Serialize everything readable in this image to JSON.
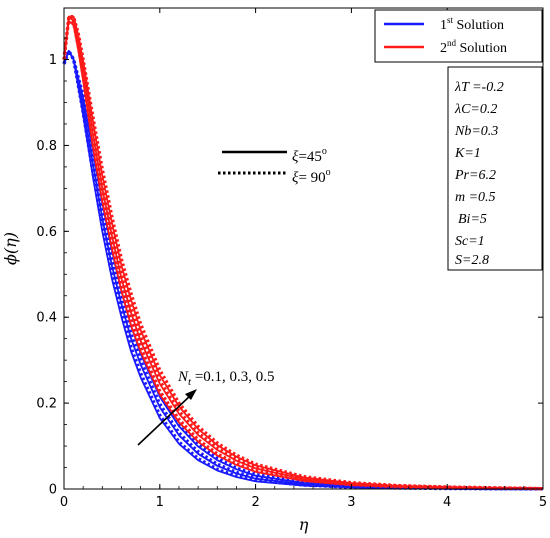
{
  "chart_data": {
    "type": "line",
    "xlabel": "η",
    "ylabel": "ϕ(η)",
    "xlim": [
      0,
      5
    ],
    "ylim": [
      0,
      1.12
    ],
    "xticks": [
      0,
      1,
      2,
      3,
      4,
      5
    ],
    "yticks": [
      0,
      0.2,
      0.4,
      0.6,
      0.8,
      1
    ],
    "xtick_labels": [
      "0",
      "1",
      "2",
      "3",
      "4",
      "5"
    ],
    "ytick_labels": [
      "0",
      "0.2",
      "0.4",
      "0.6",
      "0.8",
      "1"
    ],
    "grid": false,
    "legend": {
      "placement": "top-right",
      "entries": [
        {
          "label_main": "1",
          "label_sup": "st",
          "label_rest": " Solution",
          "color": "#1a1aff"
        },
        {
          "label_main": "2",
          "label_sup": "nd",
          "label_rest": " Solution",
          "color": "#ff1a1a"
        }
      ]
    },
    "line_style_legend": [
      {
        "style": "solid",
        "label_main": "ξ",
        "label_rest": "=45",
        "label_sup": "o"
      },
      {
        "style": "dotted",
        "label_main": "ξ",
        "label_rest": "= 90",
        "label_sup": "o"
      }
    ],
    "parameters": [
      "λT =-0.2",
      "λC=0.2",
      "Nb=0.3",
      "K=1",
      "Pr=6.2",
      "m =0.5",
      "Bi=5",
      "Sc=1",
      "S=2.8"
    ],
    "annotation": {
      "text_main": "N",
      "text_sub": "t",
      "text_rest": " =0.1, 0.3, 0.5"
    },
    "series": [
      {
        "solution": 1,
        "xi": 45,
        "Nt": 0.1,
        "color": "#1a1aff",
        "dash": "solid",
        "x": [
          0,
          0.05,
          0.1,
          0.2,
          0.3,
          0.4,
          0.5,
          0.6,
          0.7,
          0.8,
          1.0,
          1.2,
          1.4,
          1.6,
          1.8,
          2.0,
          2.5,
          3.0,
          3.5,
          4.0,
          4.5,
          5.0
        ],
        "y": [
          0.99,
          1.02,
          1.0,
          0.87,
          0.73,
          0.6,
          0.49,
          0.4,
          0.32,
          0.26,
          0.165,
          0.105,
          0.067,
          0.043,
          0.028,
          0.018,
          0.008,
          0.004,
          0.002,
          0.001,
          0.0005,
          0.0002
        ]
      },
      {
        "solution": 1,
        "xi": 90,
        "Nt": 0.1,
        "color": "#1a1aff",
        "dash": "dotted",
        "x": [
          0,
          0.05,
          0.1,
          0.2,
          0.3,
          0.4,
          0.5,
          0.6,
          0.7,
          0.8,
          1.0,
          1.2,
          1.4,
          1.6,
          1.8,
          2.0,
          2.5,
          3.0,
          3.5,
          4.0,
          4.5,
          5.0
        ],
        "y": [
          0.99,
          1.02,
          1.0,
          0.875,
          0.74,
          0.61,
          0.5,
          0.41,
          0.33,
          0.27,
          0.172,
          0.11,
          0.071,
          0.046,
          0.03,
          0.02,
          0.009,
          0.004,
          0.002,
          0.001,
          0.0005,
          0.0002
        ]
      },
      {
        "solution": 1,
        "xi": 45,
        "Nt": 0.3,
        "color": "#1a1aff",
        "dash": "solid",
        "x": [
          0,
          0.05,
          0.1,
          0.2,
          0.3,
          0.4,
          0.5,
          0.6,
          0.7,
          0.8,
          1.0,
          1.2,
          1.4,
          1.6,
          1.8,
          2.0,
          2.5,
          3.0,
          3.5,
          4.0,
          4.5,
          5.0
        ],
        "y": [
          0.99,
          1.02,
          1.0,
          0.89,
          0.76,
          0.63,
          0.52,
          0.43,
          0.35,
          0.29,
          0.19,
          0.125,
          0.082,
          0.054,
          0.036,
          0.024,
          0.011,
          0.005,
          0.003,
          0.002,
          0.001,
          0.0005
        ]
      },
      {
        "solution": 1,
        "xi": 90,
        "Nt": 0.3,
        "color": "#1a1aff",
        "dash": "dotted",
        "x": [
          0,
          0.05,
          0.1,
          0.2,
          0.3,
          0.4,
          0.5,
          0.6,
          0.7,
          0.8,
          1.0,
          1.2,
          1.4,
          1.6,
          1.8,
          2.0,
          2.5,
          3.0,
          3.5,
          4.0,
          4.5,
          5.0
        ],
        "y": [
          0.99,
          1.02,
          1.0,
          0.895,
          0.77,
          0.645,
          0.535,
          0.44,
          0.36,
          0.3,
          0.198,
          0.131,
          0.087,
          0.058,
          0.039,
          0.026,
          0.012,
          0.006,
          0.003,
          0.002,
          0.001,
          0.0005
        ]
      },
      {
        "solution": 1,
        "xi": 45,
        "Nt": 0.5,
        "color": "#1a1aff",
        "dash": "solid",
        "x": [
          0,
          0.05,
          0.1,
          0.2,
          0.3,
          0.4,
          0.5,
          0.6,
          0.7,
          0.8,
          1.0,
          1.2,
          1.4,
          1.6,
          1.8,
          2.0,
          2.5,
          3.0,
          3.5,
          4.0,
          4.5,
          5.0
        ],
        "y": [
          0.99,
          1.02,
          1.0,
          0.91,
          0.79,
          0.665,
          0.555,
          0.46,
          0.38,
          0.315,
          0.215,
          0.146,
          0.099,
          0.067,
          0.046,
          0.031,
          0.014,
          0.007,
          0.004,
          0.002,
          0.001,
          0.0006
        ]
      },
      {
        "solution": 1,
        "xi": 90,
        "Nt": 0.5,
        "color": "#1a1aff",
        "dash": "dotted",
        "x": [
          0,
          0.05,
          0.1,
          0.2,
          0.3,
          0.4,
          0.5,
          0.6,
          0.7,
          0.8,
          1.0,
          1.2,
          1.4,
          1.6,
          1.8,
          2.0,
          2.5,
          3.0,
          3.5,
          4.0,
          4.5,
          5.0
        ],
        "y": [
          0.99,
          1.02,
          1.0,
          0.915,
          0.8,
          0.68,
          0.57,
          0.475,
          0.395,
          0.33,
          0.225,
          0.154,
          0.105,
          0.072,
          0.049,
          0.034,
          0.016,
          0.008,
          0.004,
          0.002,
          0.001,
          0.0006
        ]
      },
      {
        "solution": 2,
        "xi": 45,
        "Nt": 0.1,
        "color": "#ff1a1a",
        "dash": "solid",
        "x": [
          0,
          0.05,
          0.1,
          0.15,
          0.2,
          0.3,
          0.4,
          0.5,
          0.6,
          0.7,
          0.8,
          1.0,
          1.2,
          1.4,
          1.6,
          1.8,
          2.0,
          2.5,
          3.0,
          3.5,
          4.0,
          4.5,
          5.0
        ],
        "y": [
          1.0,
          1.09,
          1.08,
          1.02,
          0.95,
          0.8,
          0.67,
          0.56,
          0.46,
          0.38,
          0.32,
          0.22,
          0.155,
          0.11,
          0.078,
          0.056,
          0.04,
          0.019,
          0.009,
          0.005,
          0.003,
          0.002,
          0.001
        ]
      },
      {
        "solution": 2,
        "xi": 90,
        "Nt": 0.1,
        "color": "#ff1a1a",
        "dash": "dotted",
        "x": [
          0,
          0.05,
          0.1,
          0.15,
          0.2,
          0.3,
          0.4,
          0.5,
          0.6,
          0.7,
          0.8,
          1.0,
          1.2,
          1.4,
          1.6,
          1.8,
          2.0,
          2.5,
          3.0,
          3.5,
          4.0,
          4.5,
          5.0
        ],
        "y": [
          1.0,
          1.095,
          1.085,
          1.03,
          0.96,
          0.81,
          0.68,
          0.57,
          0.47,
          0.39,
          0.33,
          0.228,
          0.162,
          0.115,
          0.082,
          0.059,
          0.042,
          0.02,
          0.01,
          0.005,
          0.003,
          0.002,
          0.001
        ]
      },
      {
        "solution": 2,
        "xi": 45,
        "Nt": 0.3,
        "color": "#ff1a1a",
        "dash": "solid",
        "x": [
          0,
          0.05,
          0.1,
          0.15,
          0.2,
          0.3,
          0.4,
          0.5,
          0.6,
          0.7,
          0.8,
          1.0,
          1.2,
          1.4,
          1.6,
          1.8,
          2.0,
          2.5,
          3.0,
          3.5,
          4.0,
          4.5,
          5.0
        ],
        "y": [
          1.0,
          1.1,
          1.09,
          1.04,
          0.975,
          0.83,
          0.7,
          0.59,
          0.49,
          0.41,
          0.345,
          0.245,
          0.175,
          0.126,
          0.091,
          0.066,
          0.048,
          0.023,
          0.012,
          0.006,
          0.004,
          0.002,
          0.001
        ]
      },
      {
        "solution": 2,
        "xi": 90,
        "Nt": 0.3,
        "color": "#ff1a1a",
        "dash": "dotted",
        "x": [
          0,
          0.05,
          0.1,
          0.15,
          0.2,
          0.3,
          0.4,
          0.5,
          0.6,
          0.7,
          0.8,
          1.0,
          1.2,
          1.4,
          1.6,
          1.8,
          2.0,
          2.5,
          3.0,
          3.5,
          4.0,
          4.5,
          5.0
        ],
        "y": [
          1.0,
          1.1,
          1.095,
          1.045,
          0.985,
          0.845,
          0.715,
          0.6,
          0.5,
          0.42,
          0.355,
          0.252,
          0.181,
          0.131,
          0.095,
          0.069,
          0.05,
          0.024,
          0.012,
          0.007,
          0.004,
          0.002,
          0.001
        ]
      },
      {
        "solution": 2,
        "xi": 45,
        "Nt": 0.5,
        "color": "#ff1a1a",
        "dash": "solid",
        "x": [
          0,
          0.05,
          0.1,
          0.15,
          0.2,
          0.3,
          0.4,
          0.5,
          0.6,
          0.7,
          0.8,
          1.0,
          1.2,
          1.4,
          1.6,
          1.8,
          2.0,
          2.5,
          3.0,
          3.5,
          4.0,
          4.5,
          5.0
        ],
        "y": [
          1.0,
          1.1,
          1.1,
          1.055,
          0.995,
          0.86,
          0.73,
          0.62,
          0.52,
          0.44,
          0.37,
          0.265,
          0.192,
          0.14,
          0.102,
          0.075,
          0.055,
          0.027,
          0.014,
          0.007,
          0.004,
          0.002,
          0.001
        ]
      },
      {
        "solution": 2,
        "xi": 90,
        "Nt": 0.5,
        "color": "#ff1a1a",
        "dash": "dotted",
        "x": [
          0,
          0.05,
          0.1,
          0.15,
          0.2,
          0.3,
          0.4,
          0.5,
          0.6,
          0.7,
          0.8,
          1.0,
          1.2,
          1.4,
          1.6,
          1.8,
          2.0,
          2.5,
          3.0,
          3.5,
          4.0,
          4.5,
          5.0
        ],
        "y": [
          1.0,
          1.1,
          1.1,
          1.06,
          1.0,
          0.87,
          0.745,
          0.635,
          0.535,
          0.455,
          0.385,
          0.277,
          0.2,
          0.146,
          0.107,
          0.079,
          0.058,
          0.029,
          0.015,
          0.008,
          0.005,
          0.003,
          0.001
        ]
      }
    ]
  }
}
